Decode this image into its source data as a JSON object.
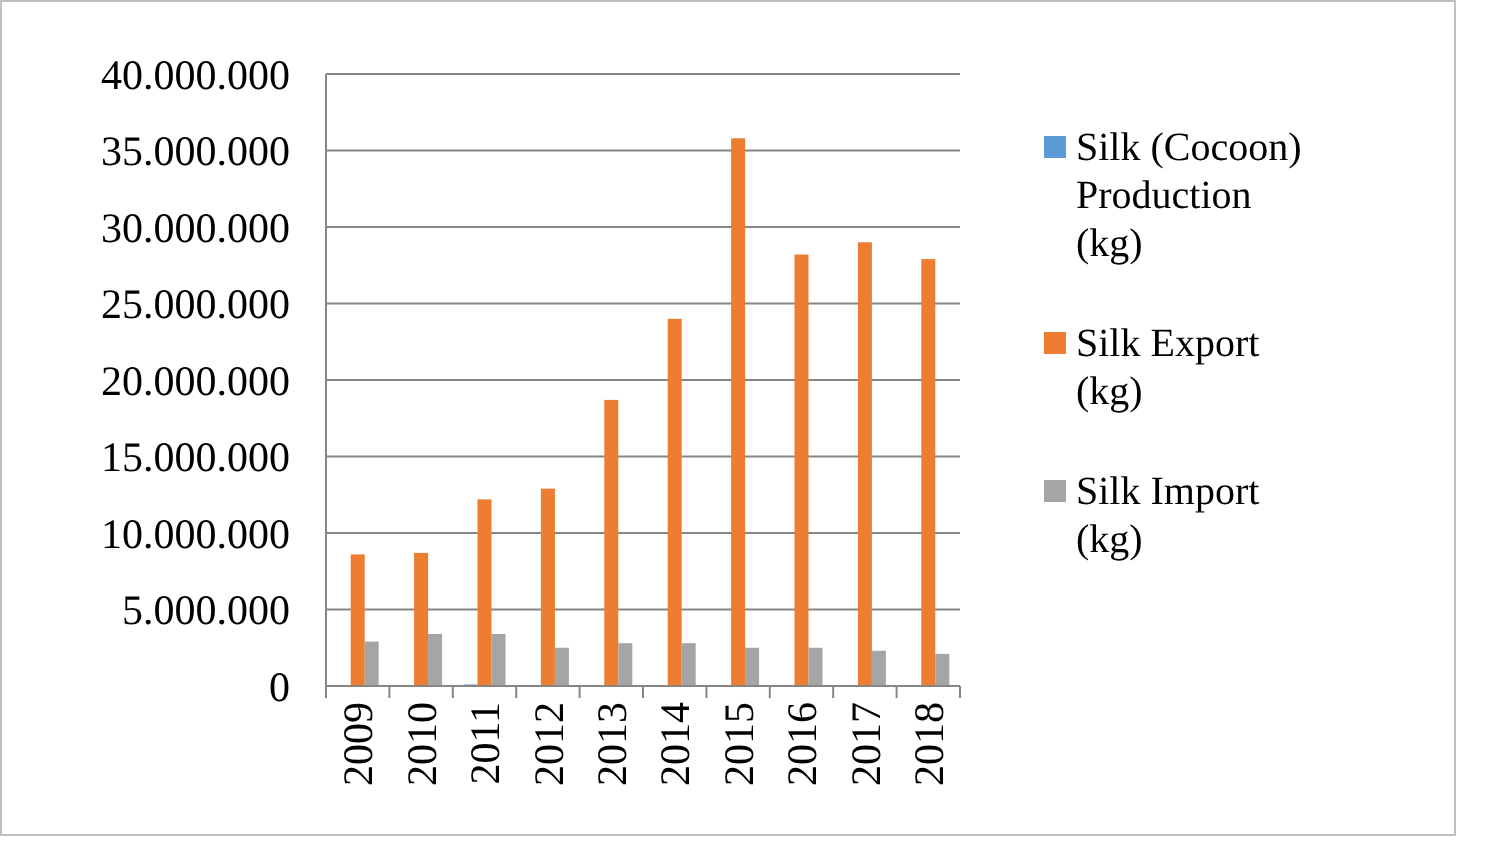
{
  "chart_data": {
    "type": "bar",
    "categories": [
      "2009",
      "2010",
      "2011",
      "2012",
      "2013",
      "2014",
      "2015",
      "2016",
      "2017",
      "2018"
    ],
    "series": [
      {
        "name": "Silk (Cocoon) Production (kg)",
        "color": "#5b9bd5",
        "values": [
          0,
          0,
          100000,
          0,
          0,
          0,
          0,
          0,
          0,
          0
        ]
      },
      {
        "name": "Silk Export (kg)",
        "color": "#ed7d31",
        "values": [
          8600000,
          8700000,
          12200000,
          12900000,
          18700000,
          24000000,
          35800000,
          28200000,
          29000000,
          27900000
        ]
      },
      {
        "name": "Silk Import (kg)",
        "color": "#a5a5a5",
        "values": [
          2900000,
          3400000,
          3400000,
          2500000,
          2800000,
          2800000,
          2500000,
          2500000,
          2300000,
          2100000
        ]
      }
    ],
    "ylim": [
      0,
      40000000
    ],
    "yticks": [
      {
        "value": 0,
        "label": "0"
      },
      {
        "value": 5000000,
        "label": "5.000.000"
      },
      {
        "value": 10000000,
        "label": "10.000.000"
      },
      {
        "value": 15000000,
        "label": "15.000.000"
      },
      {
        "value": 20000000,
        "label": "20.000.000"
      },
      {
        "value": 25000000,
        "label": "25.000.000"
      },
      {
        "value": 30000000,
        "label": "30.000.000"
      },
      {
        "value": 35000000,
        "label": "35.000.000"
      },
      {
        "value": 40000000,
        "label": "40.000.000"
      }
    ],
    "grid": "y",
    "legend": "right"
  }
}
